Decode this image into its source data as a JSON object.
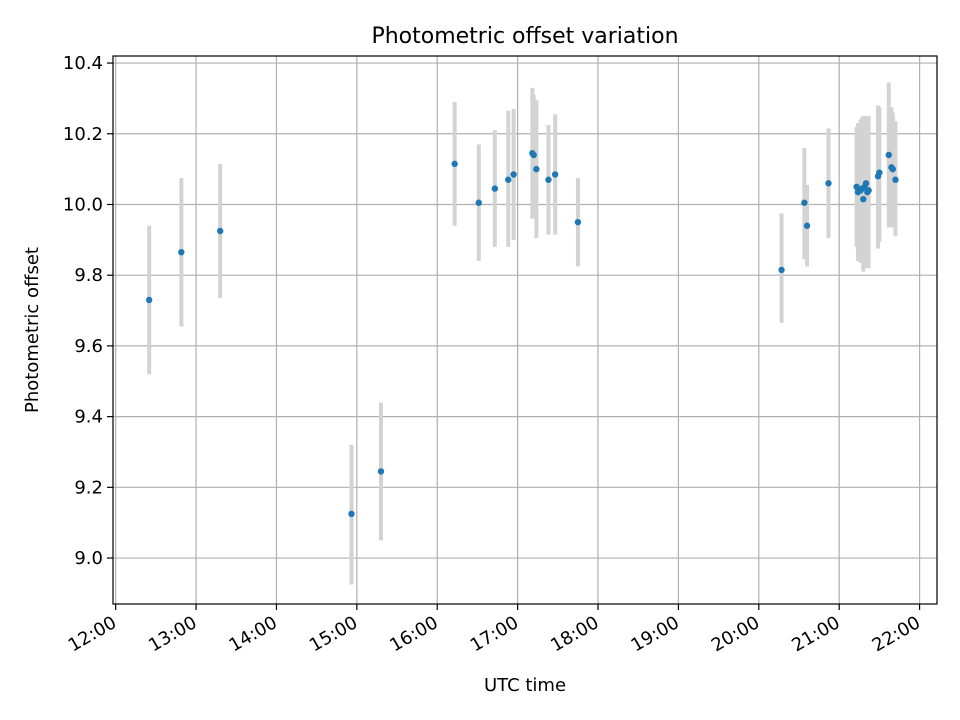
{
  "chart_data": {
    "type": "scatter",
    "title": "Photometric offset variation",
    "xlabel": "UTC time",
    "ylabel": "Photometric offset",
    "x_ticks": [
      "12:00",
      "13:00",
      "14:00",
      "15:00",
      "16:00",
      "17:00",
      "18:00",
      "19:00",
      "20:00",
      "21:00",
      "22:00"
    ],
    "y_ticks": [
      "9.0",
      "9.2",
      "9.4",
      "9.6",
      "9.8",
      "10.0",
      "10.2",
      "10.4"
    ],
    "xlim": [
      "11:58",
      "22:13"
    ],
    "ylim": [
      8.87,
      10.42
    ],
    "grid": true,
    "colors": {
      "marker": "#1f77b4",
      "errorbar": "#d3d3d3",
      "grid": "#b0b0b0"
    },
    "points": [
      {
        "x": "12:25",
        "y": 9.73,
        "yerr_low": 9.52,
        "yerr_high": 9.94
      },
      {
        "x": "12:49",
        "y": 9.865,
        "yerr_low": 9.655,
        "yerr_high": 10.075
      },
      {
        "x": "13:18",
        "y": 9.925,
        "yerr_low": 9.735,
        "yerr_high": 10.115
      },
      {
        "x": "14:56",
        "y": 9.125,
        "yerr_low": 8.925,
        "yerr_high": 9.32
      },
      {
        "x": "15:18",
        "y": 9.245,
        "yerr_low": 9.05,
        "yerr_high": 9.44
      },
      {
        "x": "16:13",
        "y": 10.115,
        "yerr_low": 9.94,
        "yerr_high": 10.29
      },
      {
        "x": "16:31",
        "y": 10.005,
        "yerr_low": 9.84,
        "yerr_high": 10.17
      },
      {
        "x": "16:43",
        "y": 10.045,
        "yerr_low": 9.88,
        "yerr_high": 10.21
      },
      {
        "x": "16:53",
        "y": 10.07,
        "yerr_low": 9.88,
        "yerr_high": 10.265
      },
      {
        "x": "16:57",
        "y": 10.085,
        "yerr_low": 9.9,
        "yerr_high": 10.27
      },
      {
        "x": "17:11",
        "y": 10.145,
        "yerr_low": 9.96,
        "yerr_high": 10.33
      },
      {
        "x": "17:12",
        "y": 10.14,
        "yerr_low": 9.97,
        "yerr_high": 10.31
      },
      {
        "x": "17:14",
        "y": 10.1,
        "yerr_low": 9.905,
        "yerr_high": 10.295
      },
      {
        "x": "17:23",
        "y": 10.07,
        "yerr_low": 9.915,
        "yerr_high": 10.225
      },
      {
        "x": "17:28",
        "y": 10.085,
        "yerr_low": 9.915,
        "yerr_high": 10.255
      },
      {
        "x": "17:45",
        "y": 9.95,
        "yerr_low": 9.825,
        "yerr_high": 10.075
      },
      {
        "x": "20:17",
        "y": 9.815,
        "yerr_low": 9.665,
        "yerr_high": 9.975
      },
      {
        "x": "20:34",
        "y": 10.005,
        "yerr_low": 9.845,
        "yerr_high": 10.16
      },
      {
        "x": "20:36",
        "y": 9.94,
        "yerr_low": 9.825,
        "yerr_high": 10.055
      },
      {
        "x": "20:52",
        "y": 10.06,
        "yerr_low": 9.905,
        "yerr_high": 10.215
      },
      {
        "x": "21:13",
        "y": 10.05,
        "yerr_low": 9.88,
        "yerr_high": 10.22
      },
      {
        "x": "21:14",
        "y": 10.035,
        "yerr_low": 9.84,
        "yerr_high": 10.23
      },
      {
        "x": "21:16",
        "y": 10.04,
        "yerr_low": 9.835,
        "yerr_high": 10.24
      },
      {
        "x": "21:17",
        "y": 10.045,
        "yerr_low": 9.84,
        "yerr_high": 10.245
      },
      {
        "x": "21:18",
        "y": 10.015,
        "yerr_low": 9.81,
        "yerr_high": 10.25
      },
      {
        "x": "21:19",
        "y": 10.05,
        "yerr_low": 9.83,
        "yerr_high": 10.25
      },
      {
        "x": "21:20",
        "y": 10.06,
        "yerr_low": 9.82,
        "yerr_high": 10.25
      },
      {
        "x": "21:21",
        "y": 10.035,
        "yerr_low": 9.82,
        "yerr_high": 10.25
      },
      {
        "x": "21:22",
        "y": 10.04,
        "yerr_low": 9.82,
        "yerr_high": 10.25
      },
      {
        "x": "21:29",
        "y": 10.08,
        "yerr_low": 9.875,
        "yerr_high": 10.28
      },
      {
        "x": "21:30",
        "y": 10.09,
        "yerr_low": 9.895,
        "yerr_high": 10.275
      },
      {
        "x": "21:37",
        "y": 10.14,
        "yerr_low": 9.935,
        "yerr_high": 10.345
      },
      {
        "x": "21:39",
        "y": 10.105,
        "yerr_low": 9.935,
        "yerr_high": 10.275
      },
      {
        "x": "21:40",
        "y": 10.1,
        "yerr_low": 9.94,
        "yerr_high": 10.26
      },
      {
        "x": "21:42",
        "y": 10.07,
        "yerr_low": 9.91,
        "yerr_high": 10.235
      }
    ]
  }
}
